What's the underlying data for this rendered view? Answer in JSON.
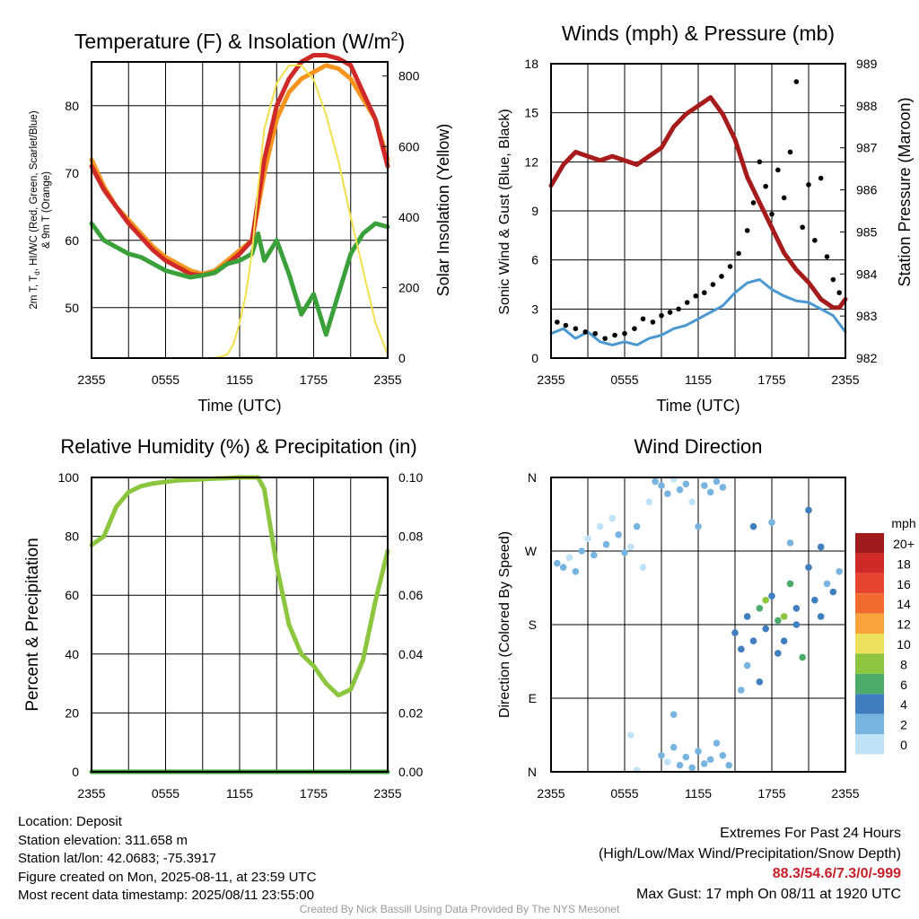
{
  "chart_data": [
    {
      "type": "line",
      "title": "Temperature (F) & Insolation (W/m",
      "title_sup": "2",
      "title_close": ")",
      "xlabel": "Time (UTC)",
      "ylabel_line1": "2m T, T",
      "ylabel_sub": "d",
      "ylabel_line1_rest": ", HI/WC (Red, Green, Scarlet/Blue)",
      "ylabel_line2": "& 9m T (Orange)",
      "y2label": "Solar Insolation (Yellow)",
      "x_ticks": [
        "2355",
        "0555",
        "1155",
        "1755",
        "2355"
      ],
      "xlim_hours": [
        0,
        24
      ],
      "ylim": [
        42.5,
        86.5
      ],
      "y_ticks": [
        50,
        60,
        70,
        80
      ],
      "y2lim": [
        0,
        840
      ],
      "y2_ticks": [
        0,
        200,
        400,
        600,
        800
      ],
      "series": [
        {
          "color": "#f7941d",
          "x": [
            0,
            1,
            2,
            3,
            4,
            5,
            6,
            7,
            8,
            9,
            10,
            11,
            12,
            13,
            14,
            15,
            16,
            17,
            18,
            19,
            20,
            21,
            22,
            23,
            24
          ],
          "values": [
            72,
            68,
            65,
            63,
            61,
            59,
            57.5,
            56.5,
            55.5,
            55,
            55.5,
            57,
            58.5,
            60,
            70,
            78,
            82,
            84,
            85,
            86,
            85.5,
            84,
            81,
            78,
            72
          ]
        },
        {
          "color": "#cf2a27",
          "x": [
            0,
            1,
            2,
            3,
            4,
            5,
            6,
            7,
            8,
            9,
            10,
            11,
            12,
            13,
            14,
            15,
            16,
            17,
            18,
            19,
            20,
            21,
            22,
            23,
            24
          ],
          "values": [
            71,
            67.5,
            65,
            62.5,
            60.5,
            58.5,
            57,
            56,
            55,
            54.8,
            55.2,
            56.5,
            58,
            60,
            72,
            80,
            84,
            86.5,
            87.5,
            87.5,
            87,
            86,
            82,
            78,
            71
          ]
        },
        {
          "color": "#3aa13a",
          "x": [
            0,
            1,
            2,
            3,
            4,
            5,
            6,
            7,
            8,
            9,
            10,
            11,
            12,
            13,
            13.5,
            14,
            15,
            16,
            17,
            18,
            19,
            20,
            21,
            22,
            23,
            24
          ],
          "values": [
            62.5,
            60,
            59,
            58,
            57.5,
            56.5,
            55.5,
            55,
            54.5,
            54.8,
            55.2,
            56.5,
            57,
            58,
            61,
            57,
            60,
            55,
            49,
            52,
            46,
            52,
            58,
            61,
            62.5,
            62
          ]
        },
        {
          "color": "#f2e04a",
          "axis": "y2",
          "x": [
            0,
            10,
            11,
            11.5,
            12,
            12.5,
            13,
            13.5,
            14,
            15,
            16,
            17,
            18,
            19,
            20,
            21,
            22,
            23,
            24
          ],
          "values": [
            0,
            0,
            10,
            40,
            100,
            180,
            300,
            480,
            650,
            780,
            830,
            830,
            790,
            690,
            560,
            400,
            250,
            100,
            10
          ]
        }
      ]
    },
    {
      "type": "line",
      "title": "Winds (mph) & Pressure (mb)",
      "xlabel": "Time (UTC)",
      "ylabel": "Sonic Wind & Gust (Blue, Black)",
      "y2label": "Station Pressure (Maroon)",
      "x_ticks": [
        "2355",
        "0555",
        "1155",
        "1755",
        "2355"
      ],
      "xlim_hours": [
        0,
        24
      ],
      "ylim": [
        0,
        18
      ],
      "y_ticks": [
        0,
        3,
        6,
        9,
        12,
        15,
        18
      ],
      "y2lim": [
        982,
        989
      ],
      "y2_ticks": [
        982,
        983,
        984,
        985,
        986,
        987,
        988,
        989
      ],
      "series": [
        {
          "name": "pressure",
          "color": "#a61b1b",
          "axis": "y2",
          "x": [
            0,
            1,
            2,
            3,
            4,
            5,
            6,
            7,
            8,
            9,
            10,
            11,
            12,
            13,
            14,
            15,
            16,
            17,
            18,
            19,
            20,
            21,
            22,
            23,
            23.5,
            24
          ],
          "values": [
            986.1,
            986.6,
            986.9,
            986.8,
            986.7,
            986.8,
            986.7,
            986.6,
            986.8,
            987.0,
            987.5,
            987.8,
            988.0,
            988.2,
            987.8,
            987.2,
            986.3,
            985.7,
            985.1,
            984.5,
            984.1,
            983.8,
            983.4,
            983.2,
            983.2,
            983.4
          ]
        },
        {
          "name": "wind",
          "color": "#4a98d1",
          "x": [
            0,
            1,
            2,
            3,
            4,
            5,
            6,
            7,
            8,
            9,
            10,
            11,
            12,
            13,
            14,
            15,
            16,
            17,
            18,
            19,
            20,
            21,
            22,
            23,
            24
          ],
          "values": [
            1.5,
            1.8,
            1.2,
            1.6,
            1.0,
            0.8,
            1.0,
            0.8,
            1.2,
            1.4,
            1.8,
            2.0,
            2.4,
            2.8,
            3.2,
            4.0,
            4.6,
            4.8,
            4.2,
            3.8,
            3.5,
            3.4,
            3.0,
            2.6,
            1.6
          ]
        },
        {
          "name": "gust",
          "color": "#000000",
          "x": [
            0.5,
            1.2,
            2.0,
            2.8,
            3.6,
            4.4,
            5.2,
            6.0,
            6.8,
            7.5,
            8.3,
            9.0,
            9.7,
            10.4,
            11.1,
            11.8,
            12.5,
            13.2,
            13.9,
            14.6,
            15.3,
            16.0,
            16.5,
            17.0,
            17.5,
            18.0,
            18.5,
            19.0,
            19.5,
            20.0,
            20.5,
            21.0,
            21.5,
            22.0,
            22.5,
            23.0,
            23.5
          ],
          "values": [
            2.2,
            2.0,
            1.8,
            1.6,
            1.5,
            1.2,
            1.4,
            1.5,
            1.8,
            2.4,
            2.2,
            2.6,
            2.8,
            3.0,
            3.4,
            3.8,
            4.0,
            4.5,
            5.0,
            5.6,
            6.4,
            7.8,
            9.5,
            12.0,
            10.5,
            8.8,
            11.5,
            9.8,
            12.6,
            16.9,
            8.0,
            10.6,
            7.2,
            11.0,
            6.2,
            4.8,
            4.0
          ]
        }
      ]
    },
    {
      "type": "line",
      "title": "Relative Humidity (%) & Precipitation (in)",
      "ylabel": "Percent & Precipitation",
      "x_ticks": [
        "2355",
        "0555",
        "1155",
        "1755",
        "2355"
      ],
      "xlim_hours": [
        0,
        24
      ],
      "ylim": [
        0,
        100
      ],
      "y_ticks": [
        0,
        20,
        40,
        60,
        80,
        100
      ],
      "y2lim": [
        0,
        0.1
      ],
      "y2_ticks": [
        "0.00",
        "0.02",
        "0.04",
        "0.06",
        "0.08",
        "0.10"
      ],
      "series": [
        {
          "name": "rh",
          "color": "#8cc63f",
          "x": [
            0,
            1,
            2,
            3,
            4,
            5,
            6,
            7,
            8,
            9,
            10,
            11,
            12,
            13,
            13.5,
            14,
            15,
            16,
            17,
            18,
            19,
            20,
            21,
            22,
            23,
            24
          ],
          "values": [
            77,
            80,
            90,
            95,
            97,
            98,
            98.5,
            99,
            99.2,
            99.4,
            99.6,
            99.8,
            100,
            100,
            100,
            96,
            70,
            50,
            40,
            36,
            30,
            26,
            28,
            38,
            58,
            75
          ]
        },
        {
          "name": "precip",
          "color": "#3aa13a",
          "axis": "y2",
          "x": [
            0,
            24
          ],
          "values": [
            0,
            0
          ]
        }
      ]
    },
    {
      "type": "scatter",
      "title": "Wind Direction",
      "ylabel": "Direction (Colored By Speed)",
      "x_ticks": [
        "2355",
        "0555",
        "1155",
        "1755",
        "2355"
      ],
      "xlim_hours": [
        0,
        24
      ],
      "y_ticks": [
        "N",
        "E",
        "S",
        "W",
        "N"
      ],
      "ylim_deg": [
        0,
        360
      ],
      "legend_title": "mph",
      "legend_labels": [
        "20+",
        "18",
        "16",
        "14",
        "12",
        "10",
        "8",
        "6",
        "4",
        "2",
        "0"
      ],
      "legend_colors": [
        "#a01c1c",
        "#cf2a27",
        "#e8452f",
        "#f26b2e",
        "#f8a43c",
        "#ede05a",
        "#8cc63f",
        "#4aab6a",
        "#3f7fbf",
        "#78b4e0",
        "#c0e2f7"
      ],
      "points": [
        {
          "x": 0.5,
          "deg": 255,
          "speed": 1
        },
        {
          "x": 1.0,
          "deg": 250,
          "speed": 1
        },
        {
          "x": 1.5,
          "deg": 262,
          "speed": 0
        },
        {
          "x": 2.0,
          "deg": 245,
          "speed": 1
        },
        {
          "x": 2.5,
          "deg": 270,
          "speed": 1
        },
        {
          "x": 3.0,
          "deg": 285,
          "speed": 0
        },
        {
          "x": 3.5,
          "deg": 265,
          "speed": 1
        },
        {
          "x": 4.0,
          "deg": 300,
          "speed": 0
        },
        {
          "x": 4.5,
          "deg": 278,
          "speed": 1
        },
        {
          "x": 5.0,
          "deg": 310,
          "speed": 0
        },
        {
          "x": 5.5,
          "deg": 290,
          "speed": 1
        },
        {
          "x": 6.0,
          "deg": 268,
          "speed": 1
        },
        {
          "x": 6.5,
          "deg": 275,
          "speed": 0
        },
        {
          "x": 7.0,
          "deg": 300,
          "speed": 1
        },
        {
          "x": 7.5,
          "deg": 250,
          "speed": 0
        },
        {
          "x": 8.0,
          "deg": 330,
          "speed": 0
        },
        {
          "x": 8.5,
          "deg": 355,
          "speed": 1
        },
        {
          "x": 9.0,
          "deg": 350,
          "speed": 1
        },
        {
          "x": 9.5,
          "deg": 340,
          "speed": 1
        },
        {
          "x": 10.0,
          "deg": 358,
          "speed": 0
        },
        {
          "x": 10.5,
          "deg": 345,
          "speed": 1
        },
        {
          "x": 11.0,
          "deg": 352,
          "speed": 1
        },
        {
          "x": 11.5,
          "deg": 330,
          "speed": 0
        },
        {
          "x": 12.0,
          "deg": 300,
          "speed": 1
        },
        {
          "x": 12.5,
          "deg": 350,
          "speed": 1
        },
        {
          "x": 13.0,
          "deg": 342,
          "speed": 2
        },
        {
          "x": 13.5,
          "deg": 355,
          "speed": 1
        },
        {
          "x": 14.0,
          "deg": 348,
          "speed": 1
        },
        {
          "x": 9.0,
          "deg": 20,
          "speed": 1
        },
        {
          "x": 9.5,
          "deg": 12,
          "speed": 0
        },
        {
          "x": 10.0,
          "deg": 30,
          "speed": 1
        },
        {
          "x": 10.5,
          "deg": 8,
          "speed": 2
        },
        {
          "x": 11.0,
          "deg": 18,
          "speed": 1
        },
        {
          "x": 11.5,
          "deg": 5,
          "speed": 2
        },
        {
          "x": 12.0,
          "deg": 25,
          "speed": 1
        },
        {
          "x": 12.5,
          "deg": 10,
          "speed": 2
        },
        {
          "x": 13.0,
          "deg": 15,
          "speed": 1
        },
        {
          "x": 13.5,
          "deg": 35,
          "speed": 2
        },
        {
          "x": 14.0,
          "deg": 20,
          "speed": 1
        },
        {
          "x": 14.5,
          "deg": 8,
          "speed": 2
        },
        {
          "x": 7.0,
          "deg": 2,
          "speed": 0
        },
        {
          "x": 6.5,
          "deg": 45,
          "speed": 0
        },
        {
          "x": 10.0,
          "deg": 70,
          "speed": 1
        },
        {
          "x": 15.0,
          "deg": 170,
          "speed": 3
        },
        {
          "x": 15.5,
          "deg": 150,
          "speed": 3
        },
        {
          "x": 16.0,
          "deg": 190,
          "speed": 4
        },
        {
          "x": 16.5,
          "deg": 160,
          "speed": 3
        },
        {
          "x": 17.0,
          "deg": 200,
          "speed": 6
        },
        {
          "x": 17.5,
          "deg": 175,
          "speed": 4
        },
        {
          "x": 18.0,
          "deg": 215,
          "speed": 3
        },
        {
          "x": 18.5,
          "deg": 185,
          "speed": 6
        },
        {
          "x": 19.0,
          "deg": 160,
          "speed": 4
        },
        {
          "x": 19.5,
          "deg": 230,
          "speed": 5
        },
        {
          "x": 20.0,
          "deg": 200,
          "speed": 4
        },
        {
          "x": 20.5,
          "deg": 140,
          "speed": 6
        },
        {
          "x": 21.0,
          "deg": 250,
          "speed": 3
        },
        {
          "x": 21.5,
          "deg": 210,
          "speed": 4
        },
        {
          "x": 22.0,
          "deg": 190,
          "speed": 3
        },
        {
          "x": 22.5,
          "deg": 230,
          "speed": 2
        },
        {
          "x": 23.0,
          "deg": 220,
          "speed": 3
        },
        {
          "x": 23.5,
          "deg": 245,
          "speed": 2
        },
        {
          "x": 16.0,
          "deg": 130,
          "speed": 2
        },
        {
          "x": 17.0,
          "deg": 110,
          "speed": 3
        },
        {
          "x": 16.5,
          "deg": 300,
          "speed": 3
        },
        {
          "x": 18.0,
          "deg": 305,
          "speed": 2
        },
        {
          "x": 19.5,
          "deg": 280,
          "speed": 2
        },
        {
          "x": 21.0,
          "deg": 320,
          "speed": 3
        },
        {
          "x": 22.0,
          "deg": 275,
          "speed": 3
        },
        {
          "x": 18.5,
          "deg": 145,
          "speed": 3
        },
        {
          "x": 17.5,
          "deg": 210,
          "speed": 7
        },
        {
          "x": 19.0,
          "deg": 190,
          "speed": 7
        },
        {
          "x": 20.0,
          "deg": 180,
          "speed": 3
        },
        {
          "x": 15.5,
          "deg": 100,
          "speed": 2
        }
      ]
    }
  ],
  "footer": {
    "location": "Location: Deposit",
    "elevation": "Station elevation: 311.658 m",
    "latlon": "Station lat/lon: 42.0683; -75.3917",
    "created": "Figure created on Mon, 2025-08-11, at 23:59 UTC",
    "recent": "Most recent data timestamp: 2025/08/11 23:55:00",
    "extremes_title": "Extremes For Past 24 Hours",
    "extremes_sub": "(High/Low/Max Wind/Precipitation/Snow Depth)",
    "extremes_values": "88.3/54.6/7.3/0/-999",
    "max_gust": "Max Gust: 17 mph On 08/11 at 1920 UTC",
    "credit": "Created By Nick Bassill Using Data Provided By The NYS Mesonet"
  }
}
